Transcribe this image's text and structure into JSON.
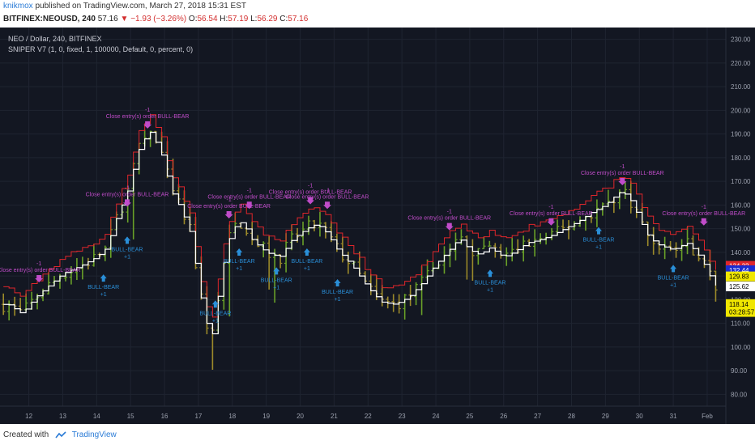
{
  "header": {
    "author": "knikmox",
    "published_text": "published on TradingView.com, March 27, 2018 15:31 EST",
    "symbol": "BITFINEX:NEOUSD, 240",
    "last": "57.16",
    "change_arrow": "▼",
    "change": "−1.93 (−3.26%)",
    "open_label": "O:",
    "open": "56.54",
    "high_label": "H:",
    "high": "57.19",
    "low_label": "L:",
    "low": "56.29",
    "close_label": "C:",
    "close": "57.16"
  },
  "legend": {
    "line1": "NEO / Dollar, 240, BITFINEX",
    "line2": "SNIPER V7 (1, 0, fixed, 1, 100000, Default, 0, percent, 0)"
  },
  "footer": {
    "created_with": "Created with",
    "brand": "TradingView"
  },
  "colors": {
    "background": "#131722",
    "grid": "#1f2431",
    "candle_up": "#6aa128",
    "candle_down": "#9c8a2a",
    "stop_line": "#e0262b",
    "center_line": "#ffffff",
    "signal_label": "#c04cc9",
    "signal_buy": "#2a8fd8",
    "axis_text": "#9ba0ad"
  },
  "chart_data": {
    "type": "candlestick",
    "title": "NEO / Dollar, 240, BITFINEX",
    "ylim": [
      75,
      235
    ],
    "y_ticks": [
      "80.00",
      "90.00",
      "100.00",
      "110.00",
      "120.00",
      "130.00",
      "140.00",
      "150.00",
      "160.00",
      "170.00",
      "180.00",
      "190.00",
      "200.00",
      "210.00",
      "220.00",
      "230.00"
    ],
    "x_ticks": [
      "12",
      "13",
      "14",
      "15",
      "16",
      "17",
      "18",
      "19",
      "20",
      "21",
      "22",
      "23",
      "24",
      "25",
      "26",
      "27",
      "28",
      "29",
      "30",
      "31",
      "Feb"
    ],
    "grid": true,
    "price_path": [
      {
        "x": "11.4",
        "y": 118
      },
      {
        "x": "11.8",
        "y": 114
      },
      {
        "x": "12.2",
        "y": 121
      },
      {
        "x": "12.6",
        "y": 126
      },
      {
        "x": "13.0",
        "y": 131
      },
      {
        "x": "13.5",
        "y": 134
      },
      {
        "x": "14.0",
        "y": 138
      },
      {
        "x": "14.3",
        "y": 142
      },
      {
        "x": "14.6",
        "y": 155
      },
      {
        "x": "14.9",
        "y": 165
      },
      {
        "x": "15.1",
        "y": 176
      },
      {
        "x": "15.3",
        "y": 186
      },
      {
        "x": "15.6",
        "y": 191
      },
      {
        "x": "15.9",
        "y": 182
      },
      {
        "x": "16.2",
        "y": 166
      },
      {
        "x": "16.5",
        "y": 158
      },
      {
        "x": "16.8",
        "y": 147
      },
      {
        "x": "17.0",
        "y": 127
      },
      {
        "x": "17.2",
        "y": 112
      },
      {
        "x": "17.4",
        "y": 104
      },
      {
        "x": "17.6",
        "y": 123
      },
      {
        "x": "17.8",
        "y": 140
      },
      {
        "x": "18.0",
        "y": 150
      },
      {
        "x": "18.3",
        "y": 153
      },
      {
        "x": "18.6",
        "y": 145
      },
      {
        "x": "19.0",
        "y": 140
      },
      {
        "x": "19.4",
        "y": 138
      },
      {
        "x": "19.8",
        "y": 146
      },
      {
        "x": "20.2",
        "y": 150
      },
      {
        "x": "20.5",
        "y": 152
      },
      {
        "x": "20.8",
        "y": 148
      },
      {
        "x": "21.1",
        "y": 141
      },
      {
        "x": "21.5",
        "y": 135
      },
      {
        "x": "22.0",
        "y": 125
      },
      {
        "x": "22.4",
        "y": 119
      },
      {
        "x": "22.8",
        "y": 118
      },
      {
        "x": "23.2",
        "y": 121
      },
      {
        "x": "23.6",
        "y": 127
      },
      {
        "x": "24.0",
        "y": 135
      },
      {
        "x": "24.4",
        "y": 141
      },
      {
        "x": "24.7",
        "y": 146
      },
      {
        "x": "25.0",
        "y": 141
      },
      {
        "x": "25.3",
        "y": 139
      },
      {
        "x": "25.6",
        "y": 142
      },
      {
        "x": "26.0",
        "y": 138
      },
      {
        "x": "26.3",
        "y": 140
      },
      {
        "x": "26.7",
        "y": 144
      },
      {
        "x": "27.0",
        "y": 145
      },
      {
        "x": "27.4",
        "y": 147
      },
      {
        "x": "27.8",
        "y": 150
      },
      {
        "x": "28.2",
        "y": 153
      },
      {
        "x": "28.6",
        "y": 157
      },
      {
        "x": "29.0",
        "y": 160
      },
      {
        "x": "29.3",
        "y": 164
      },
      {
        "x": "29.5",
        "y": 166
      },
      {
        "x": "29.8",
        "y": 161
      },
      {
        "x": "30.0",
        "y": 154
      },
      {
        "x": "30.3",
        "y": 146
      },
      {
        "x": "30.6",
        "y": 143
      },
      {
        "x": "31.0",
        "y": 141
      },
      {
        "x": "31.4",
        "y": 144
      },
      {
        "x": "31.7",
        "y": 140
      },
      {
        "x": "32.0",
        "y": 133
      },
      {
        "x": "32.2",
        "y": 126
      }
    ],
    "signals": [
      {
        "type": "close",
        "x": "12.3",
        "y": 128,
        "label": "Close entry(s) order BULL-BEAR",
        "qty": "-1"
      },
      {
        "type": "buy",
        "x": "14.2",
        "y": 130,
        "label": "BULL-BEAR",
        "qty": "+1"
      },
      {
        "type": "close",
        "x": "14.9",
        "y": 160,
        "label": "Close entry(s) order BULL-BEAR",
        "qty": "-1"
      },
      {
        "type": "buy",
        "x": "14.9",
        "y": 146,
        "label": "BULL-BEAR",
        "qty": "+1"
      },
      {
        "type": "close",
        "x": "15.5",
        "y": 193,
        "label": "Close entry(s) order BULL-BEAR",
        "qty": "-1"
      },
      {
        "type": "buy",
        "x": "17.5",
        "y": 119,
        "label": "BULL-BEAR",
        "qty": "+1"
      },
      {
        "type": "close",
        "x": "17.9",
        "y": 155,
        "label": "Close entry(s) order BULL-BEAR",
        "qty": "-1"
      },
      {
        "type": "close",
        "x": "18.5",
        "y": 159,
        "label": "Close entry(s) order BULL-BEAR",
        "qty": "-1"
      },
      {
        "type": "buy",
        "x": "18.2",
        "y": 141,
        "label": "BULL-BEAR",
        "qty": "+1"
      },
      {
        "type": "buy",
        "x": "19.3",
        "y": 133,
        "label": "BULL-BEAR",
        "qty": "+1"
      },
      {
        "type": "close",
        "x": "20.3",
        "y": 161,
        "label": "Close entry(s) order BULL-BEAR",
        "qty": "-1"
      },
      {
        "type": "close",
        "x": "20.8",
        "y": 159,
        "label": "Close entry(s) order BULL-BEAR",
        "qty": "-1"
      },
      {
        "type": "buy",
        "x": "20.2",
        "y": 141,
        "label": "BULL-BEAR",
        "qty": "+1"
      },
      {
        "type": "buy",
        "x": "21.1",
        "y": 128,
        "label": "BULL-BEAR",
        "qty": "+1"
      },
      {
        "type": "close",
        "x": "24.4",
        "y": 150,
        "label": "Close entry(s) order BULL-BEAR",
        "qty": "-1"
      },
      {
        "type": "buy",
        "x": "25.6",
        "y": 132,
        "label": "BULL-BEAR",
        "qty": "+1"
      },
      {
        "type": "close",
        "x": "27.4",
        "y": 152,
        "label": "Close entry(s) order BULL-BEAR",
        "qty": "-1"
      },
      {
        "type": "buy",
        "x": "28.8",
        "y": 150,
        "label": "BULL-BEAR",
        "qty": "+1"
      },
      {
        "type": "close",
        "x": "29.5",
        "y": 169,
        "label": "Close entry(s) order BULL-BEAR",
        "qty": "-1"
      },
      {
        "type": "buy",
        "x": "31.0",
        "y": 134,
        "label": "BULL-BEAR",
        "qty": "+1"
      },
      {
        "type": "close",
        "x": "31.9",
        "y": 152,
        "label": "Close entry(s) order BULL-BEAR",
        "qty": "-1"
      }
    ],
    "price_tags": [
      {
        "value": 134.32,
        "label": "134.32",
        "bg": "#e0262b",
        "fg": "#ffffff"
      },
      {
        "value": 132.44,
        "label": "132.44",
        "bg": "#1a2bd1",
        "fg": "#ffffff"
      },
      {
        "value": 129.83,
        "label": "129.83",
        "bg": "#f0e600",
        "fg": "#000000"
      },
      {
        "value": 125.62,
        "label": "125.62",
        "bg": "#ffffff",
        "fg": "#000000"
      },
      {
        "value": 118.14,
        "label": "118.14",
        "bg": "#f0e600",
        "fg": "#000000"
      },
      {
        "value": 114.8,
        "label": "03:28:57",
        "bg": "#f0e600",
        "fg": "#000000"
      }
    ]
  }
}
